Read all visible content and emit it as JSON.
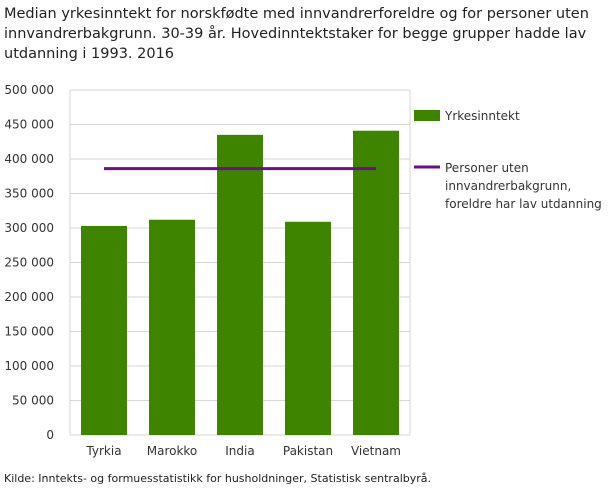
{
  "chart_data": {
    "type": "bar",
    "title": "Median yrkesinntekt for norskfødte med innvandrerforeldre og for personer uten innvandrerbakgrunn. 30-39 år. Hovedinntektstaker for begge grupper hadde lav utdanning i 1993. 2016",
    "categories": [
      "Tyrkia",
      "Marokko",
      "India",
      "Pakistan",
      "Vietnam"
    ],
    "series": [
      {
        "name": "Yrkesinntekt",
        "type": "bar",
        "color": "#3f8400",
        "values": [
          303000,
          312000,
          435000,
          309000,
          441000
        ]
      },
      {
        "name": "Personer uten innvandrerbakgrunn, foreldre har lav utdanning",
        "type": "line",
        "color": "#6b0f89",
        "values": [
          386000,
          386000,
          386000,
          386000,
          386000
        ]
      }
    ],
    "legend_lines": [
      "Personer uten",
      "innvandrerbakgrunn,",
      "foreldre har lav utdanning"
    ],
    "ylim": [
      0,
      500000
    ],
    "yticks": [
      0,
      50000,
      100000,
      150000,
      200000,
      250000,
      300000,
      350000,
      400000,
      450000,
      500000
    ],
    "ytick_labels": [
      "0",
      "50 000",
      "100 000",
      "150 000",
      "200 000",
      "250 000",
      "300 000",
      "350 000",
      "400 000",
      "450 000",
      "500 000"
    ],
    "grid": true,
    "legend_position": "right"
  },
  "source": "Kilde: Inntekts- og formuesstatistikk for husholdninger, Statistisk sentralbyrå."
}
